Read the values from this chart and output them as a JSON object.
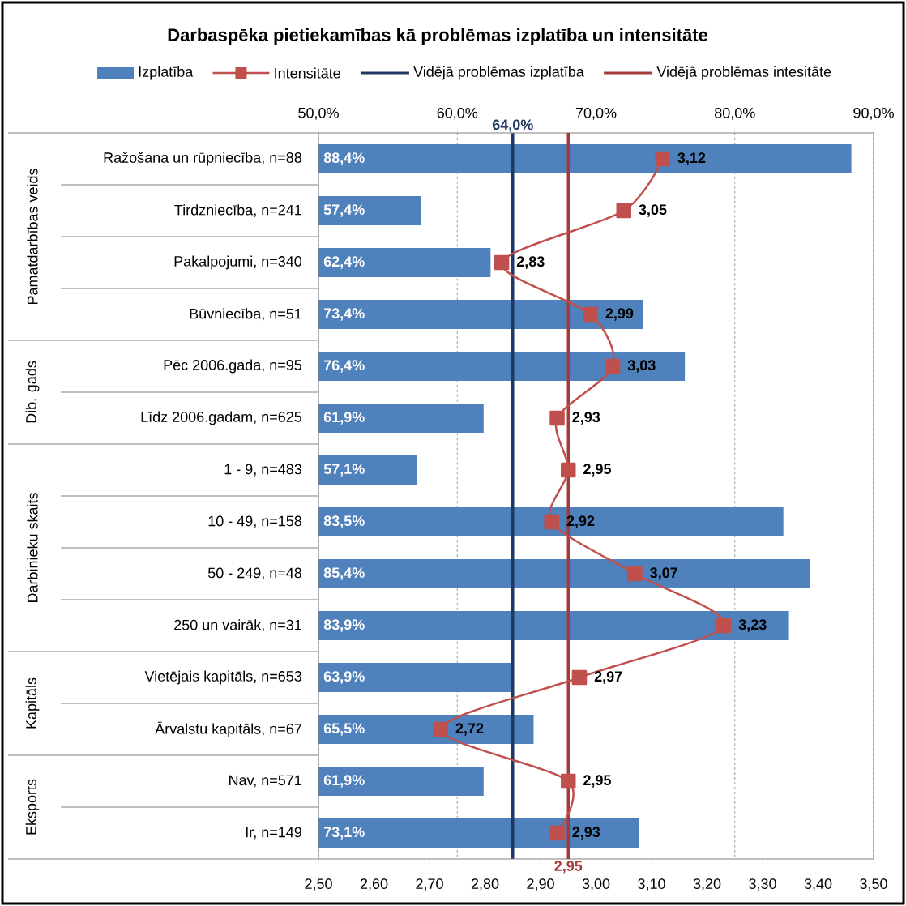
{
  "chart_data": {
    "type": "bar",
    "orientation": "horizontal",
    "title": "Darbaspēka pietiekamības kā problēmas izplatība un intensitāte",
    "categories": [
      "Ražošana un rūpniecība,  n=88",
      "Tirdzniecība, n=241",
      "Pakalpojumi,  n=340",
      "Būvniecība, n=51",
      "Pēc 2006.gada, n=95",
      "Līdz 2006.gadam, n=625",
      "1 - 9, n=483",
      "10 - 49, n=158",
      "50 - 249, n=48",
      "250 un vairāk,  n=31",
      "Vietējais kapitāls,  n=653",
      "Ārvalstu kapitāls,  n=67",
      "Nav, n=571",
      "Ir, n=149"
    ],
    "series": [
      {
        "name": "Izplatība",
        "axis": "x2",
        "color": "#4f81bd",
        "values": [
          88.4,
          57.4,
          62.4,
          73.4,
          76.4,
          61.9,
          57.1,
          83.5,
          85.4,
          83.9,
          63.9,
          65.5,
          61.9,
          73.1
        ],
        "value_labels": [
          "88,4%",
          "57,4%",
          "62,4%",
          "73,4%",
          "76,4%",
          "61,9%",
          "57,1%",
          "83,5%",
          "85,4%",
          "83,9%",
          "63,9%",
          "65,5%",
          "61,9%",
          "73,1%"
        ]
      },
      {
        "name": "Intensitāte",
        "type": "line",
        "color": "#c0504d",
        "values": [
          3.12,
          3.05,
          2.83,
          2.99,
          3.03,
          2.93,
          2.95,
          2.92,
          3.07,
          3.23,
          2.97,
          2.72,
          2.95,
          2.93
        ],
        "value_labels": [
          "3,12",
          "3,05",
          "2,83",
          "2,99",
          "3,03",
          "2,93",
          "2,95",
          "2,92",
          "3,07",
          "3,23",
          "2,97",
          "2,72",
          "2,95",
          "2,93"
        ]
      }
    ],
    "marker": "square",
    "xlim": [
      2.5,
      3.5
    ],
    "xticks": [
      {
        "value": 2.5,
        "label": "2,50"
      },
      {
        "value": 2.6,
        "label": "2,60"
      },
      {
        "value": 2.7,
        "label": "2,70"
      },
      {
        "value": 2.8,
        "label": "2,80"
      },
      {
        "value": 2.9,
        "label": "2,90"
      },
      {
        "value": 3.0,
        "label": "3,00"
      },
      {
        "value": 3.1,
        "label": "3,10"
      },
      {
        "value": 3.2,
        "label": "3,20"
      },
      {
        "value": 3.3,
        "label": "3,30"
      },
      {
        "value": 3.4,
        "label": "3,40"
      },
      {
        "value": 3.5,
        "label": "3,50"
      }
    ],
    "x2lim": [
      50,
      90
    ],
    "x2ticks": [
      {
        "value": 50,
        "label": "50,0%"
      },
      {
        "value": 60,
        "label": "60,0%"
      },
      {
        "value": 70,
        "label": "70,0%"
      },
      {
        "value": 80,
        "label": "80,0%"
      },
      {
        "value": 90,
        "label": "90,0%"
      }
    ],
    "ref_lines": [
      {
        "axis": "x2",
        "value": 64,
        "label": "Vidējā problēmas  izplatība",
        "color": "#1f3864"
      },
      {
        "axis": "x",
        "value": 2.95,
        "label": "Vidējā problēmas  intesitāte",
        "color": "#a33b3b"
      }
    ],
    "annotations": [
      "64,0%",
      "2,95",
      "Pamatdarbības veids",
      "Dib. gads",
      "Darbinieku skaits",
      "Kapitāls",
      "Eksports"
    ],
    "grid": "x2",
    "legend": "top"
  }
}
